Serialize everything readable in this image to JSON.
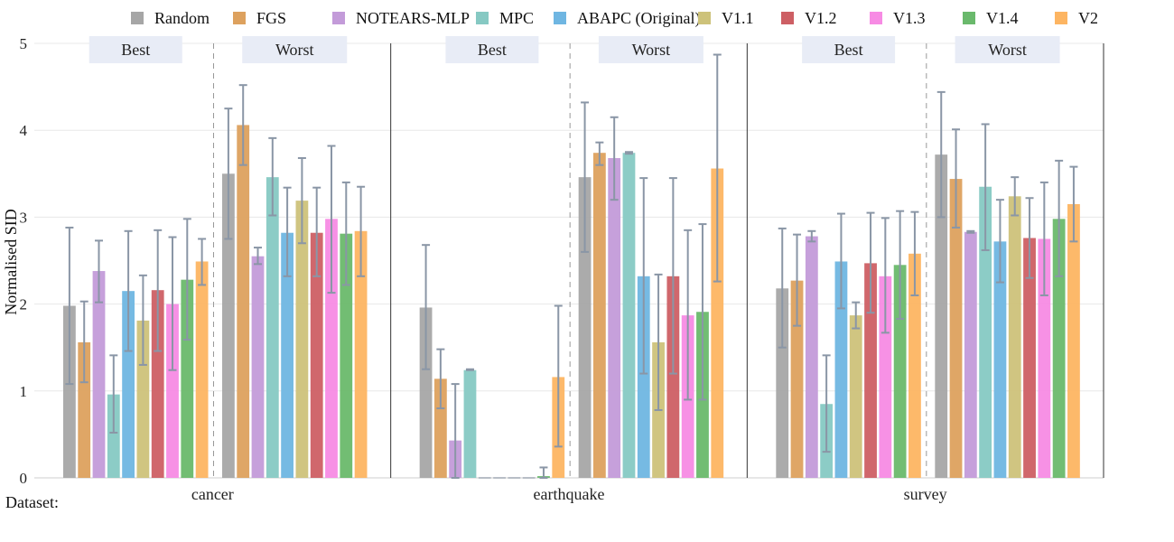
{
  "chart_data": {
    "type": "bar",
    "ylabel": "Normalised SID",
    "ylim": [
      0,
      5
    ],
    "yticks": [
      0,
      1,
      2,
      3,
      4,
      5
    ],
    "grid": true,
    "legend_position": "top",
    "x_axis_caption": "Dataset:",
    "datasets": [
      "cancer",
      "earthquake",
      "survey"
    ],
    "panels": [
      "Best",
      "Worst"
    ],
    "series": [
      {
        "name": "Random",
        "color": "#a6a6a6",
        "values": [
          [
            1.98,
            3.5
          ],
          [
            1.96,
            3.46
          ],
          [
            2.18,
            3.72
          ]
        ],
        "errors": [
          [
            [
              1.08,
              2.88
            ],
            [
              2.75,
              4.25
            ]
          ],
          [
            [
              1.25,
              2.68
            ],
            [
              2.6,
              4.32
            ]
          ],
          [
            [
              1.5,
              2.87
            ],
            [
              3.0,
              4.44
            ]
          ]
        ]
      },
      {
        "name": "FGS",
        "color": "#dda15e",
        "values": [
          [
            1.56,
            4.06
          ],
          [
            1.14,
            3.74
          ],
          [
            2.27,
            3.44
          ]
        ],
        "errors": [
          [
            [
              1.1,
              2.03
            ],
            [
              3.6,
              4.52
            ]
          ],
          [
            [
              0.8,
              1.48
            ],
            [
              3.6,
              3.86
            ]
          ],
          [
            [
              1.75,
              2.8
            ],
            [
              2.88,
              4.01
            ]
          ]
        ]
      },
      {
        "name": "NOTEARS-MLP",
        "color": "#c39bd9",
        "values": [
          [
            2.38,
            2.55
          ],
          [
            0.43,
            3.68
          ],
          [
            2.78,
            2.83
          ]
        ],
        "errors": [
          [
            [
              2.02,
              2.73
            ],
            [
              2.46,
              2.65
            ]
          ],
          [
            [
              0.0,
              1.08
            ],
            [
              3.2,
              4.15
            ]
          ],
          [
            [
              2.72,
              2.84
            ],
            [
              2.82,
              2.84
            ]
          ]
        ]
      },
      {
        "name": "MPC",
        "color": "#86c9c3",
        "values": [
          [
            0.96,
            3.46
          ],
          [
            1.24,
            3.74
          ],
          [
            0.85,
            3.35
          ]
        ],
        "errors": [
          [
            [
              0.52,
              1.41
            ],
            [
              3.02,
              3.91
            ]
          ],
          [
            [
              1.24,
              1.25
            ],
            [
              3.73,
              3.75
            ]
          ],
          [
            [
              0.3,
              1.41
            ],
            [
              2.62,
              4.07
            ]
          ]
        ]
      },
      {
        "name": "ABAPC (Original)",
        "color": "#6fb6e2",
        "values": [
          [
            2.15,
            2.82
          ],
          [
            0.0,
            2.32
          ],
          [
            2.49,
            2.72
          ]
        ],
        "errors": [
          [
            [
              1.46,
              2.84
            ],
            [
              2.32,
              3.34
            ]
          ],
          [
            [
              0.0,
              0.0
            ],
            [
              1.2,
              3.45
            ]
          ],
          [
            [
              1.95,
              3.04
            ],
            [
              2.25,
              3.2
            ]
          ]
        ]
      },
      {
        "name": "V1.1",
        "color": "#cdc27a",
        "values": [
          [
            1.81,
            3.19
          ],
          [
            0.0,
            1.56
          ],
          [
            1.87,
            3.24
          ]
        ],
        "errors": [
          [
            [
              1.3,
              2.33
            ],
            [
              2.7,
              3.68
            ]
          ],
          [
            [
              0.0,
              0.0
            ],
            [
              0.78,
              2.34
            ]
          ],
          [
            [
              1.72,
              2.02
            ],
            [
              3.02,
              3.46
            ]
          ]
        ]
      },
      {
        "name": "V1.2",
        "color": "#cd5f64",
        "values": [
          [
            2.16,
            2.82
          ],
          [
            0.0,
            2.32
          ],
          [
            2.47,
            2.76
          ]
        ],
        "errors": [
          [
            [
              1.46,
              2.85
            ],
            [
              2.32,
              3.34
            ]
          ],
          [
            [
              0.0,
              0.0
            ],
            [
              1.2,
              3.45
            ]
          ],
          [
            [
              1.9,
              3.05
            ],
            [
              2.3,
              3.22
            ]
          ]
        ]
      },
      {
        "name": "V1.3",
        "color": "#f78be4",
        "values": [
          [
            2.0,
            2.98
          ],
          [
            0.0,
            1.87
          ],
          [
            2.32,
            2.75
          ]
        ],
        "errors": [
          [
            [
              1.24,
              2.77
            ],
            [
              2.13,
              3.82
            ]
          ],
          [
            [
              0.0,
              0.0
            ],
            [
              0.9,
              2.85
            ]
          ],
          [
            [
              1.67,
              2.99
            ],
            [
              2.1,
              3.4
            ]
          ]
        ]
      },
      {
        "name": "V1.4",
        "color": "#6ab96c",
        "values": [
          [
            2.28,
            2.81
          ],
          [
            0.02,
            1.91
          ],
          [
            2.45,
            2.98
          ]
        ],
        "errors": [
          [
            [
              1.59,
              2.98
            ],
            [
              2.22,
              3.4
            ]
          ],
          [
            [
              0.0,
              0.12
            ],
            [
              0.9,
              2.92
            ]
          ],
          [
            [
              1.83,
              3.07
            ],
            [
              2.32,
              3.65
            ]
          ]
        ]
      },
      {
        "name": "V2",
        "color": "#fdb562",
        "values": [
          [
            2.49,
            2.84
          ],
          [
            1.16,
            3.56
          ],
          [
            2.58,
            3.15
          ]
        ],
        "errors": [
          [
            [
              2.22,
              2.75
            ],
            [
              2.32,
              3.35
            ]
          ],
          [
            [
              0.36,
              1.98
            ],
            [
              2.26,
              4.87
            ]
          ],
          [
            [
              2.1,
              3.06
            ],
            [
              2.72,
              3.58
            ]
          ]
        ]
      }
    ]
  }
}
